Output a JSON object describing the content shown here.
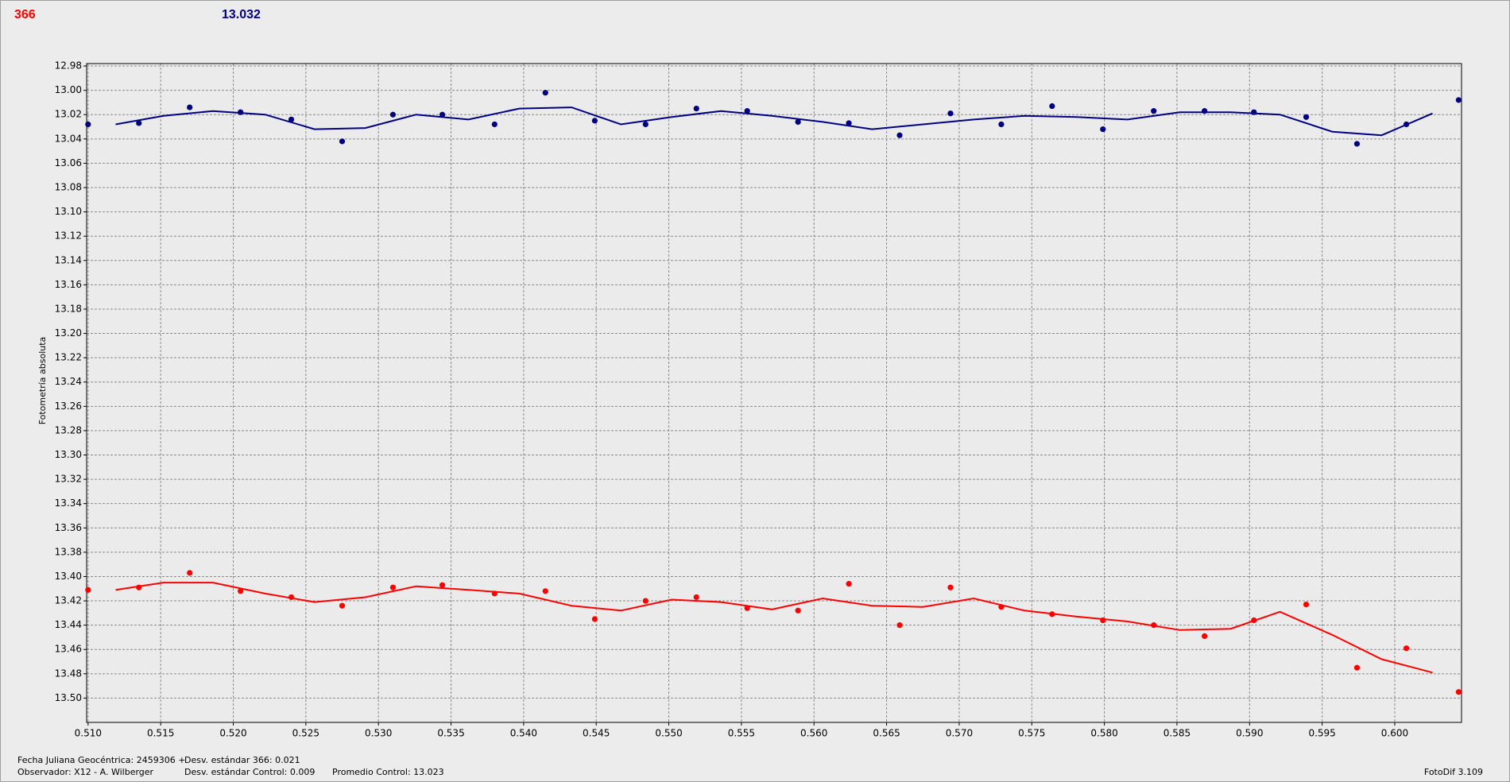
{
  "header": {
    "left": "366",
    "right": "13.032"
  },
  "footer": {
    "date": "Fecha Juliana Geocéntrica: 2459306 +",
    "observer": "Observador: X12 - A. Wilberger",
    "std_target": "Desv. estándar 366: 0.021",
    "std_control": "Desv. estándar Control: 0.009",
    "mean_control": "Promedio Control: 13.023",
    "version": "FotoDif 3.109"
  },
  "chart_data": {
    "type": "scatter",
    "y_label": "Fotometría absoluta",
    "y_inverted": true,
    "grid": true,
    "xlim": [
      0.5099,
      0.6046
    ],
    "ylim": [
      12.978,
      13.52
    ],
    "xticks": [
      {
        "value": 0.51,
        "label": "0.510"
      },
      0.515,
      {
        "value": 0.52,
        "label": "0.520"
      },
      0.525,
      {
        "value": 0.53,
        "label": "0.530"
      },
      0.535,
      {
        "value": 0.54,
        "label": "0.540"
      },
      0.545,
      {
        "value": 0.55,
        "label": "0.550"
      },
      0.555,
      {
        "value": 0.56,
        "label": "0.560"
      },
      0.565,
      {
        "value": 0.57,
        "label": "0.570"
      },
      0.575,
      {
        "value": 0.58,
        "label": "0.580"
      },
      0.585,
      {
        "value": 0.59,
        "label": "0.590"
      },
      0.595,
      {
        "value": 0.6,
        "label": "0.600"
      }
    ],
    "yticks": [
      12.98,
      {
        "value": 13,
        "label": "13.00"
      },
      13.02,
      13.04,
      13.06,
      13.08,
      {
        "value": 13.1,
        "label": "13.10"
      },
      13.12,
      13.14,
      13.16,
      13.18,
      {
        "value": 13.2,
        "label": "13.20"
      },
      13.22,
      13.24,
      13.26,
      13.28,
      {
        "value": 13.3,
        "label": "13.30"
      },
      13.32,
      13.34,
      13.36,
      13.38,
      {
        "value": 13.4,
        "label": "13.40"
      },
      13.42,
      13.44,
      13.46,
      13.48,
      {
        "value": 13.5,
        "label": "13.50"
      }
    ],
    "series": [
      {
        "kind": "points",
        "color": "#000080",
        "x": [
          0.51,
          0.5135,
          0.517,
          0.5205,
          0.524,
          0.5275,
          0.531,
          0.5344,
          0.538,
          0.5415,
          0.5449,
          0.5484,
          0.5519,
          0.5554,
          0.5589,
          0.5624,
          0.5659,
          0.5694,
          0.5729,
          0.5764,
          0.5799,
          0.5834,
          0.5869,
          0.5903,
          0.5939,
          0.5974,
          0.6008,
          0.6044
        ],
        "values": [
          13.028,
          13.027,
          13.014,
          13.018,
          13.024,
          13.042,
          13.02,
          13.02,
          13.028,
          13.002,
          13.025,
          13.028,
          13.015,
          13.017,
          13.026,
          13.027,
          13.037,
          13.019,
          13.028,
          13.013,
          13.032,
          13.017,
          13.017,
          13.018,
          13.022,
          13.044,
          13.028,
          13.008
        ]
      },
      {
        "kind": "points",
        "color": "#ff0000",
        "x": [
          0.51,
          0.5135,
          0.517,
          0.5205,
          0.524,
          0.5275,
          0.531,
          0.5344,
          0.538,
          0.5415,
          0.5449,
          0.5484,
          0.5519,
          0.5554,
          0.5589,
          0.5624,
          0.5659,
          0.5694,
          0.5729,
          0.5764,
          0.5799,
          0.5834,
          0.5869,
          0.5903,
          0.5939,
          0.5974,
          0.6008,
          0.6044
        ],
        "values": [
          13.411,
          13.409,
          13.397,
          13.412,
          13.417,
          13.424,
          13.409,
          13.407,
          13.414,
          13.412,
          13.435,
          13.42,
          13.417,
          13.426,
          13.428,
          13.406,
          13.44,
          13.409,
          13.425,
          13.431,
          13.436,
          13.44,
          13.449,
          13.436,
          13.423,
          13.475,
          13.459,
          13.495
        ]
      },
      {
        "kind": "line",
        "color": "#000080",
        "x": [
          0.5119,
          0.5152,
          0.5186,
          0.5222,
          0.5256,
          0.5291,
          0.5326,
          0.5362,
          0.5397,
          0.5433,
          0.5467,
          0.5502,
          0.5536,
          0.5571,
          0.5606,
          0.564,
          0.5675,
          0.571,
          0.5745,
          0.5781,
          0.5816,
          0.5852,
          0.5887,
          0.5921,
          0.5957,
          0.5991,
          0.6026
        ],
        "values": [
          13.028,
          13.021,
          13.017,
          13.02,
          13.032,
          13.031,
          13.02,
          13.024,
          13.015,
          13.014,
          13.028,
          13.022,
          13.017,
          13.021,
          13.026,
          13.032,
          13.028,
          13.024,
          13.021,
          13.022,
          13.024,
          13.018,
          13.018,
          13.02,
          13.034,
          13.037,
          13.019
        ]
      },
      {
        "kind": "line",
        "color": "#ff0000",
        "x": [
          0.5119,
          0.5152,
          0.5186,
          0.5222,
          0.5256,
          0.5291,
          0.5326,
          0.5362,
          0.5397,
          0.5433,
          0.5467,
          0.5502,
          0.5536,
          0.5571,
          0.5606,
          0.564,
          0.5675,
          0.571,
          0.5745,
          0.5781,
          0.5816,
          0.5852,
          0.5887,
          0.5921,
          0.5957,
          0.5991,
          0.6026
        ],
        "values": [
          13.411,
          13.405,
          13.405,
          13.414,
          13.421,
          13.417,
          13.408,
          13.411,
          13.414,
          13.424,
          13.428,
          13.419,
          13.421,
          13.427,
          13.418,
          13.424,
          13.425,
          13.418,
          13.428,
          13.433,
          13.437,
          13.444,
          13.443,
          13.429,
          13.448,
          13.468,
          13.479
        ]
      }
    ]
  }
}
